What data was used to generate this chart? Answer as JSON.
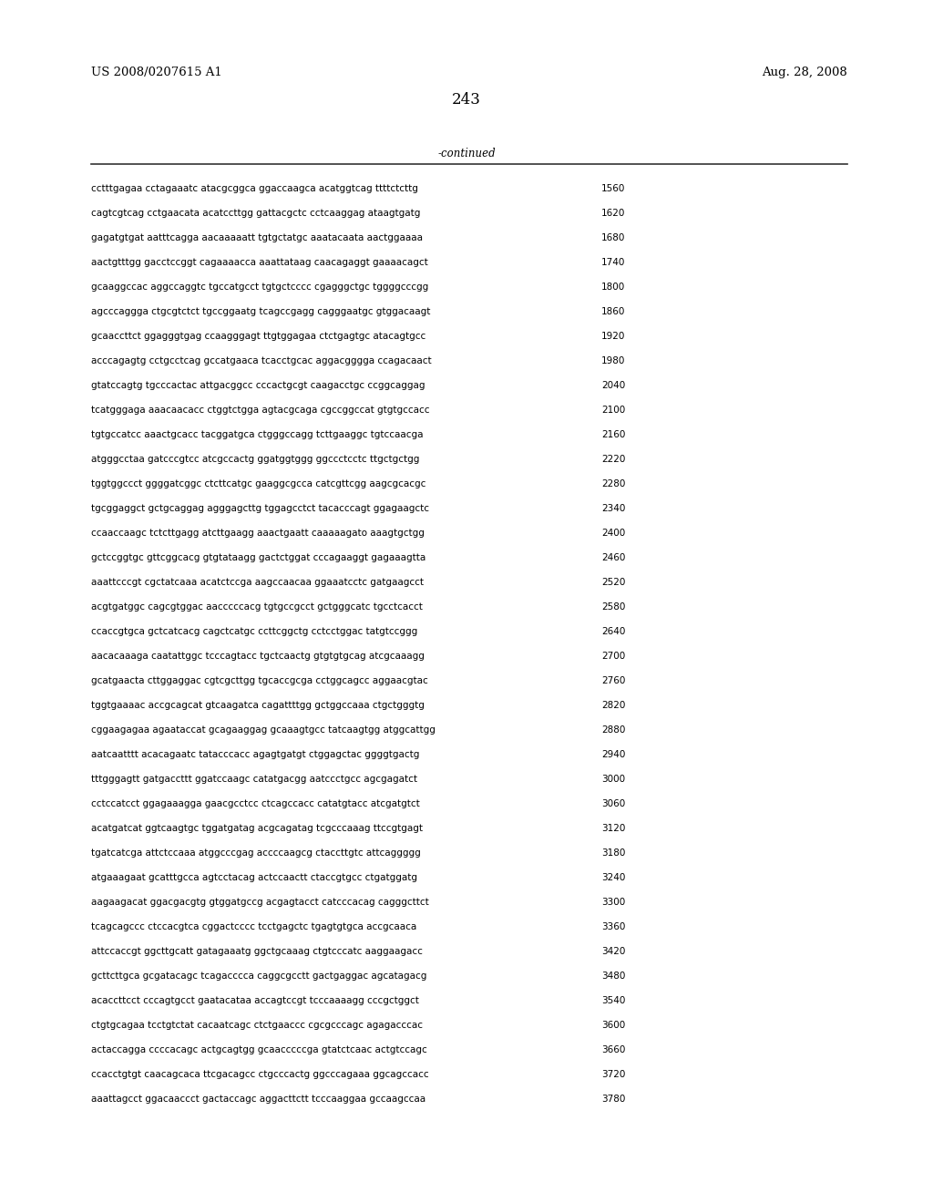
{
  "header_left": "US 2008/0207615 A1",
  "header_right": "Aug. 28, 2008",
  "page_number": "243",
  "continued_label": "-continued",
  "bg_color": "#ffffff",
  "text_color": "#000000",
  "font_size": 7.5,
  "header_font_size": 9.5,
  "page_num_font_size": 12,
  "sequence_lines": [
    [
      "cctttgagaa cctagaaatc atacgcggca ggaccaagca acatggtcag ttttctcttg",
      "1560"
    ],
    [
      "cagtcgtcag cctgaacata acatccttgg gattacgctc cctcaaggag ataagtgatg",
      "1620"
    ],
    [
      "gagatgtgat aatttcagga aacaaaaatt tgtgctatgc aaatacaata aactggaaaa",
      "1680"
    ],
    [
      "aactgtttgg gacctccggt cagaaaacca aaattataag caacagaggt gaaaacagct",
      "1740"
    ],
    [
      "gcaaggccac aggccaggtc tgccatgcct tgtgctcccc cgagggctgc tggggcccgg",
      "1800"
    ],
    [
      "agcccaggga ctgcgtctct tgccggaatg tcagccgagg cagggaatgc gtggacaagt",
      "1860"
    ],
    [
      "gcaaccttct ggagggtgag ccaagggagt ttgtggagaa ctctgagtgc atacagtgcc",
      "1920"
    ],
    [
      "acccagagtg cctgcctcag gccatgaaca tcacctgcac aggacgggga ccagacaact",
      "1980"
    ],
    [
      "gtatccagtg tgcccactac attgacggcc cccactgcgt caagacctgc ccggcaggag",
      "2040"
    ],
    [
      "tcatgggaga aaacaacacc ctggtctgga agtacgcaga cgccggccat gtgtgccacc",
      "2100"
    ],
    [
      "tgtgccatcc aaactgcacc tacggatgca ctgggccagg tcttgaaggc tgtccaacga",
      "2160"
    ],
    [
      "atgggcctaa gatcccgtcc atcgccactg ggatggtggg ggccctcctc ttgctgctgg",
      "2220"
    ],
    [
      "tggtggccct ggggatcggc ctcttcatgc gaaggcgcca catcgttcgg aagcgcacgc",
      "2280"
    ],
    [
      "tgcggaggct gctgcaggag agggagcttg tggagcctct tacacccagt ggagaagctc",
      "2340"
    ],
    [
      "ccaaccaagc tctcttgagg atcttgaagg aaactgaatt caaaaagato aaagtgctgg",
      "2400"
    ],
    [
      "gctccggtgc gttcggcacg gtgtataagg gactctggat cccagaaggt gagaaagtta",
      "2460"
    ],
    [
      "aaattcccgt cgctatcaaa acatctccga aagccaacaa ggaaatcctc gatgaagcct",
      "2520"
    ],
    [
      "acgtgatggc cagcgtggac aacccccacg tgtgccgcct gctgggcatc tgcctcacct",
      "2580"
    ],
    [
      "ccaccgtgca gctcatcacg cagctcatgc ccttcggctg cctcctggac tatgtccggg",
      "2640"
    ],
    [
      "aacacaaaga caatattggc tcccagtacc tgctcaactg gtgtgtgcag atcgcaaagg",
      "2700"
    ],
    [
      "gcatgaacta cttggaggac cgtcgcttgg tgcaccgcga cctggcagcc aggaacgtac",
      "2760"
    ],
    [
      "tggtgaaaac accgcagcat gtcaagatca cagattttgg gctggccaaa ctgctgggtg",
      "2820"
    ],
    [
      "cggaagagaa agaataccat gcagaaggag gcaaagtgcc tatcaagtgg atggcattgg",
      "2880"
    ],
    [
      "aatcaatttt acacagaatc tatacccacc agagtgatgt ctggagctac ggggtgactg",
      "2940"
    ],
    [
      "tttgggagtt gatgaccttt ggatccaagc catatgacgg aatccctgcc agcgagatct",
      "3000"
    ],
    [
      "cctccatcct ggagaaagga gaacgcctcc ctcagccacc catatgtacc atcgatgtct",
      "3060"
    ],
    [
      "acatgatcat ggtcaagtgc tggatgatag acgcagatag tcgcccaaag ttccgtgagt",
      "3120"
    ],
    [
      "tgatcatcga attctccaaa atggcccgag accccaagcg ctaccttgtc attcaggggg",
      "3180"
    ],
    [
      "atgaaagaat gcatttgcca agtcctacag actccaactt ctaccgtgcc ctgatggatg",
      "3240"
    ],
    [
      "aagaagacat ggacgacgtg gtggatgccg acgagtacct catcccacag cagggcttct",
      "3300"
    ],
    [
      "tcagcagccc ctccacgtca cggactcccc tcctgagctc tgagtgtgca accgcaaca",
      "3360"
    ],
    [
      "attccaccgt ggcttgcatt gatagaaatg ggctgcaaag ctgtcccatc aaggaagacc",
      "3420"
    ],
    [
      "gcttcttgca gcgatacagc tcagacccca caggcgcctt gactgaggac agcatagacg",
      "3480"
    ],
    [
      "acaccttcct cccagtgcct gaatacataa accagtccgt tcccaaaagg cccgctggct",
      "3540"
    ],
    [
      "ctgtgcagaa tcctgtctat cacaatcagc ctctgaaccc cgcgcccagc agagacccac",
      "3600"
    ],
    [
      "actaccagga ccccacagc actgcagtgg gcaacccccga gtatctcaac actgtccagc",
      "3660"
    ],
    [
      "ccacctgtgt caacagcaca ttcgacagcc ctgcccactg ggcccagaaa ggcagccacc",
      "3720"
    ],
    [
      "aaattagcct ggacaaccct gactaccagc aggacttctt tcccaaggaa gccaagccaa",
      "3780"
    ]
  ]
}
